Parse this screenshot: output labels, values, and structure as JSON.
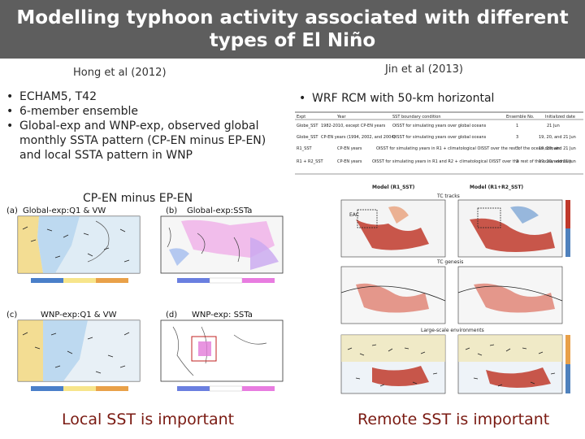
{
  "title": {
    "line1": "Modelling typhoon activity associated with different",
    "line2": "types of El Niño"
  },
  "left": {
    "header": "Hong et al  (2012)",
    "bullets": [
      "ECHAM5, T42",
      "6-member ensemble",
      "Global-exp and WNP-exp, observed global monthly SSTA pattern (CP-EN minus EP-EN) and local SSTA pattern in WNP"
    ],
    "figure_caption": "CP-EN minus EP-EN",
    "panels": {
      "a": "(a)",
      "a_title": "Global-exp:Q1 & VW",
      "b": "(b)",
      "b_title": "Global-exp:SSTa",
      "c": "(c)",
      "c_title": "WNP-exp:Q1 & VW",
      "d": "(d)",
      "d_title": "WNP-exp: SSTa"
    },
    "conclusion": "Local SST is important"
  },
  "right": {
    "header": "Jin et al  (2013)",
    "bullets": [
      "WRF RCM with 50-km horizontal"
    ],
    "table": {
      "headers": [
        "Expt",
        "Year",
        "SST boundary condition",
        "Ensemble No.",
        "Initialized date"
      ],
      "rows": [
        [
          "Globe_SST",
          "1982-2010, except CP-EN years",
          "OISST for simulating years over global oceans",
          "1",
          "21 Jun"
        ],
        [
          "Globe_SST",
          "CP-EN years (1994, 2002, and 2004)",
          "OISST for simulating years over global oceans",
          "3",
          "19, 20, and 21 Jun"
        ],
        [
          "R1_SST",
          "CP-EN years",
          "OISST for simulating years in R1 + climatological OISST over the rest of the ocean domain",
          "3",
          "19, 20, and 21 Jun"
        ],
        [
          "R1 + R2_SST",
          "CP-EN years",
          "OISST for simulating years in R1 and R2 + climatological OISST over the rest of the ocean domain",
          "3",
          "19, 20, and 21 Jun"
        ]
      ]
    },
    "figure_labels": {
      "model1": "Model (R1_SST)",
      "model2": "Model (R1+R2_SST)",
      "row1": "TC tracks",
      "row2": "TC genesis",
      "row3": "Large-scale environments",
      "eac": "EAC"
    },
    "conclusion": "Remote SST is important"
  }
}
